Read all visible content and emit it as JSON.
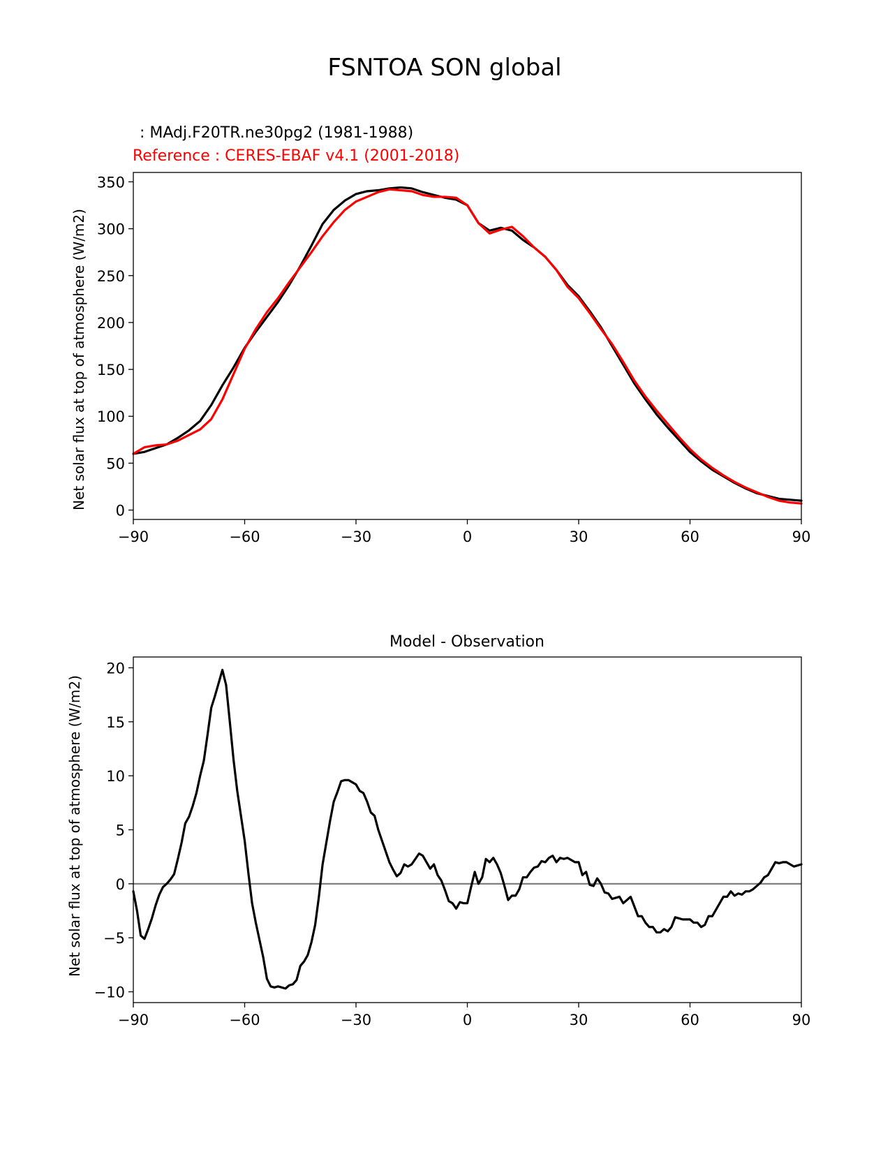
{
  "figure": {
    "suptitle": "FSNTOA SON global"
  },
  "chart_data": [
    {
      "type": "line",
      "title": "",
      "legend": {
        "test_label": " : MAdj.F20TR.ne30pg2 (1981-1988)",
        "reference_label": "Reference : CERES-EBAF v4.1 (2001-2018)",
        "placement": "top-left, above axes"
      },
      "xlabel": "",
      "ylabel": "Net solar flux at top of atmosphere (W/m2)",
      "xlim": [
        -90,
        90
      ],
      "ylim": [
        -10,
        360
      ],
      "xticks": [
        -90,
        -60,
        -30,
        0,
        30,
        60,
        90
      ],
      "xtick_labels": [
        "−90",
        "−60",
        "−30",
        "0",
        "30",
        "60",
        "90"
      ],
      "yticks": [
        0,
        50,
        100,
        150,
        200,
        250,
        300,
        350
      ],
      "grid": false,
      "series": [
        {
          "name": "MAdj.F20TR.ne30pg2 (1981-1988)",
          "color": "#000000",
          "x": [
            -90,
            -87,
            -84,
            -81,
            -78,
            -75,
            -72,
            -69,
            -66,
            -63,
            -60,
            -57,
            -54,
            -51,
            -48,
            -45,
            -42,
            -39,
            -36,
            -33,
            -30,
            -27,
            -24,
            -21,
            -18,
            -15,
            -12,
            -9,
            -6,
            -3,
            0,
            3,
            6,
            9,
            12,
            15,
            18,
            21,
            24,
            27,
            30,
            33,
            36,
            39,
            42,
            45,
            48,
            51,
            54,
            57,
            60,
            63,
            66,
            69,
            72,
            75,
            78,
            81,
            84,
            87,
            90
          ],
          "y": [
            60,
            62,
            66,
            70,
            77,
            85,
            95,
            112,
            133,
            152,
            173,
            190,
            206,
            222,
            240,
            260,
            282,
            305,
            320,
            330,
            337,
            340,
            341,
            343,
            344,
            343,
            339,
            336,
            333,
            331,
            325,
            306,
            298,
            301,
            298,
            288,
            280,
            270,
            256,
            240,
            228,
            212,
            195,
            175,
            155,
            135,
            118,
            102,
            88,
            75,
            62,
            52,
            43,
            36,
            29,
            23,
            18,
            15,
            12,
            11,
            10
          ]
        },
        {
          "name": "Reference : CERES-EBAF v4.1 (2001-2018)",
          "color": "#ff0000",
          "x": [
            -90,
            -87,
            -84,
            -81,
            -78,
            -75,
            -72,
            -69,
            -66,
            -63,
            -60,
            -57,
            -54,
            -51,
            -48,
            -45,
            -42,
            -39,
            -36,
            -33,
            -30,
            -27,
            -24,
            -21,
            -18,
            -15,
            -12,
            -9,
            -6,
            -3,
            0,
            3,
            6,
            9,
            12,
            15,
            18,
            21,
            24,
            27,
            30,
            33,
            36,
            39,
            42,
            45,
            48,
            51,
            54,
            57,
            60,
            63,
            66,
            69,
            72,
            75,
            78,
            81,
            84,
            87,
            90
          ],
          "y": [
            60,
            67,
            69,
            70,
            74,
            80,
            86,
            97,
            118,
            145,
            172,
            193,
            211,
            226,
            243,
            259,
            275,
            292,
            307,
            320,
            329,
            334,
            339,
            342,
            341,
            340,
            336,
            334,
            334,
            333,
            325,
            306,
            295,
            299,
            302,
            292,
            280,
            270,
            256,
            238,
            226,
            210,
            193,
            177,
            158,
            138,
            121,
            106,
            92,
            78,
            65,
            54,
            45,
            37,
            30,
            24,
            19,
            14,
            10,
            8,
            7
          ]
        }
      ]
    },
    {
      "type": "line",
      "title": "Model - Observation",
      "xlabel": "",
      "ylabel": "Net solar flux at top of atmosphere (W/m2)",
      "xlim": [
        -90,
        90
      ],
      "ylim": [
        -11,
        21
      ],
      "xticks": [
        -90,
        -60,
        -30,
        0,
        30,
        60,
        90
      ],
      "xtick_labels": [
        "−90",
        "−60",
        "−30",
        "0",
        "30",
        "60",
        "90"
      ],
      "yticks": [
        -10,
        -5,
        0,
        5,
        10,
        15,
        20
      ],
      "ytick_labels": [
        "−10",
        "−5",
        "0",
        "5",
        "10",
        "15",
        "20"
      ],
      "grid": false,
      "zero_line": {
        "value": 0,
        "color": "#808080"
      },
      "series": [
        {
          "name": "",
          "color": "#000000",
          "x": [
            -90,
            -89,
            -88,
            -87,
            -86,
            -85,
            -84,
            -83,
            -82,
            -81,
            -80,
            -79,
            -78,
            -77,
            -76,
            -75,
            -74,
            -73,
            -72,
            -71,
            -70,
            -69,
            -68,
            -67,
            -66,
            -65,
            -64,
            -63,
            -62,
            -61,
            -60,
            -59,
            -58,
            -57,
            -56,
            -55,
            -54,
            -53,
            -52,
            -51,
            -50,
            -49,
            -48,
            -47,
            -46,
            -45,
            -44,
            -43,
            -42,
            -41,
            -40,
            -39,
            -38,
            -37,
            -36,
            -35,
            -34,
            -33,
            -32,
            -31,
            -30,
            -29,
            -28,
            -27,
            -26,
            -25,
            -24,
            -23,
            -22,
            -21,
            -20,
            -19,
            -18,
            -17,
            -16,
            -15,
            -14,
            -13,
            -12,
            -11,
            -10,
            -9,
            -8,
            -7,
            -6,
            -5,
            -4,
            -3,
            -2,
            -1,
            0,
            1,
            2,
            3,
            4,
            5,
            6,
            7,
            8,
            9,
            10,
            11,
            12,
            13,
            14,
            15,
            16,
            17,
            18,
            19,
            20,
            21,
            22,
            23,
            24,
            25,
            26,
            27,
            28,
            29,
            30,
            31,
            32,
            33,
            34,
            35,
            36,
            37,
            38,
            39,
            40,
            41,
            42,
            43,
            44,
            45,
            46,
            47,
            48,
            49,
            50,
            51,
            52,
            53,
            54,
            55,
            56,
            57,
            58,
            59,
            60,
            61,
            62,
            63,
            64,
            65,
            66,
            67,
            68,
            69,
            70,
            71,
            72,
            73,
            74,
            75,
            76,
            77,
            78,
            79,
            80,
            81,
            82,
            83,
            84,
            85,
            86,
            87,
            88,
            89,
            90
          ],
          "y": [
            -0.7,
            -2.5,
            -4.8,
            -5.1,
            -4.2,
            -3.2,
            -2.0,
            -1.0,
            -0.3,
            0.0,
            0.4,
            0.9,
            2.3,
            3.8,
            5.6,
            6.2,
            7.2,
            8.4,
            10.0,
            11.4,
            13.8,
            16.3,
            17.4,
            18.6,
            19.8,
            18.4,
            15.0,
            11.5,
            8.6,
            6.3,
            4.0,
            1.0,
            -1.8,
            -3.6,
            -5.2,
            -6.8,
            -8.8,
            -9.5,
            -9.6,
            -9.5,
            -9.6,
            -9.7,
            -9.4,
            -9.3,
            -8.9,
            -7.6,
            -7.2,
            -6.6,
            -5.4,
            -3.8,
            -1.2,
            1.8,
            3.8,
            5.8,
            7.6,
            8.5,
            9.5,
            9.6,
            9.6,
            9.4,
            9.2,
            8.6,
            8.4,
            7.6,
            6.6,
            6.3,
            5.0,
            4.0,
            3.0,
            2.0,
            1.3,
            0.7,
            1.0,
            1.8,
            1.6,
            1.8,
            2.3,
            2.8,
            2.6,
            2.0,
            1.4,
            1.8,
            0.8,
            0.3,
            -0.6,
            -1.6,
            -1.8,
            -2.3,
            -1.7,
            -1.8,
            -1.8,
            -0.3,
            1.1,
            0.0,
            0.6,
            2.3,
            2.0,
            2.4,
            1.8,
            1.0,
            -0.2,
            -1.5,
            -1.1,
            -1.1,
            -0.5,
            0.6,
            0.6,
            1.1,
            1.5,
            1.6,
            2.1,
            2.0,
            2.4,
            2.6,
            2.0,
            2.4,
            2.3,
            2.4,
            2.2,
            2.0,
            2.0,
            0.8,
            1.1,
            -0.1,
            -0.2,
            0.5,
            0.0,
            -0.8,
            -0.9,
            -1.4,
            -1.3,
            -1.2,
            -1.8,
            -1.5,
            -1.2,
            -2.1,
            -3.0,
            -3.0,
            -3.6,
            -4.0,
            -4.0,
            -4.5,
            -4.5,
            -4.2,
            -4.4,
            -4.0,
            -3.1,
            -3.2,
            -3.3,
            -3.3,
            -3.3,
            -3.6,
            -3.6,
            -4.0,
            -3.8,
            -3.0,
            -3.0,
            -2.4,
            -1.8,
            -1.2,
            -1.2,
            -0.7,
            -1.1,
            -0.9,
            -1.0,
            -0.7,
            -0.7,
            -0.5,
            -0.2,
            0.1,
            0.6,
            0.8,
            1.4,
            2.0,
            1.9,
            2.0,
            2.0,
            1.8,
            1.6,
            1.7,
            1.8
          ]
        }
      ]
    }
  ]
}
